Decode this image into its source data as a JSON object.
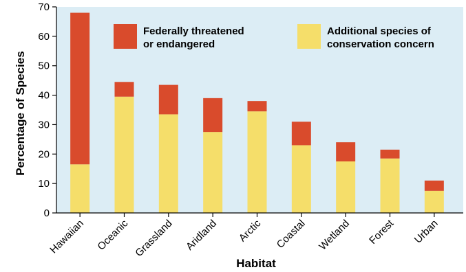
{
  "chart_data": {
    "type": "bar",
    "stacked": true,
    "categories": [
      "Hawaiian",
      "Oceanic",
      "Grassland",
      "Aridland",
      "Arctic",
      "Coastal",
      "Wetland",
      "Forest",
      "Urban"
    ],
    "series": [
      {
        "name_lines": [
          "Additional species of",
          "conservation concern"
        ],
        "color": "#f5de6a",
        "values": [
          16.5,
          39.5,
          33.5,
          27.5,
          34.5,
          23,
          17.5,
          18.5,
          7.5
        ]
      },
      {
        "name_lines": [
          "Federally threatened",
          "or endangered"
        ],
        "color": "#d94b2c",
        "values": [
          51.5,
          5,
          10,
          11.5,
          3.5,
          8,
          6.5,
          3,
          3.5
        ]
      }
    ],
    "xlabel": "Habitat",
    "ylabel": "Percentage of Species",
    "ylim": [
      0,
      70
    ],
    "yticks": [
      0,
      10,
      20,
      30,
      40,
      50,
      60,
      70
    ],
    "grid": false,
    "legend_position": "top",
    "plot_background": "#dcedf5"
  }
}
